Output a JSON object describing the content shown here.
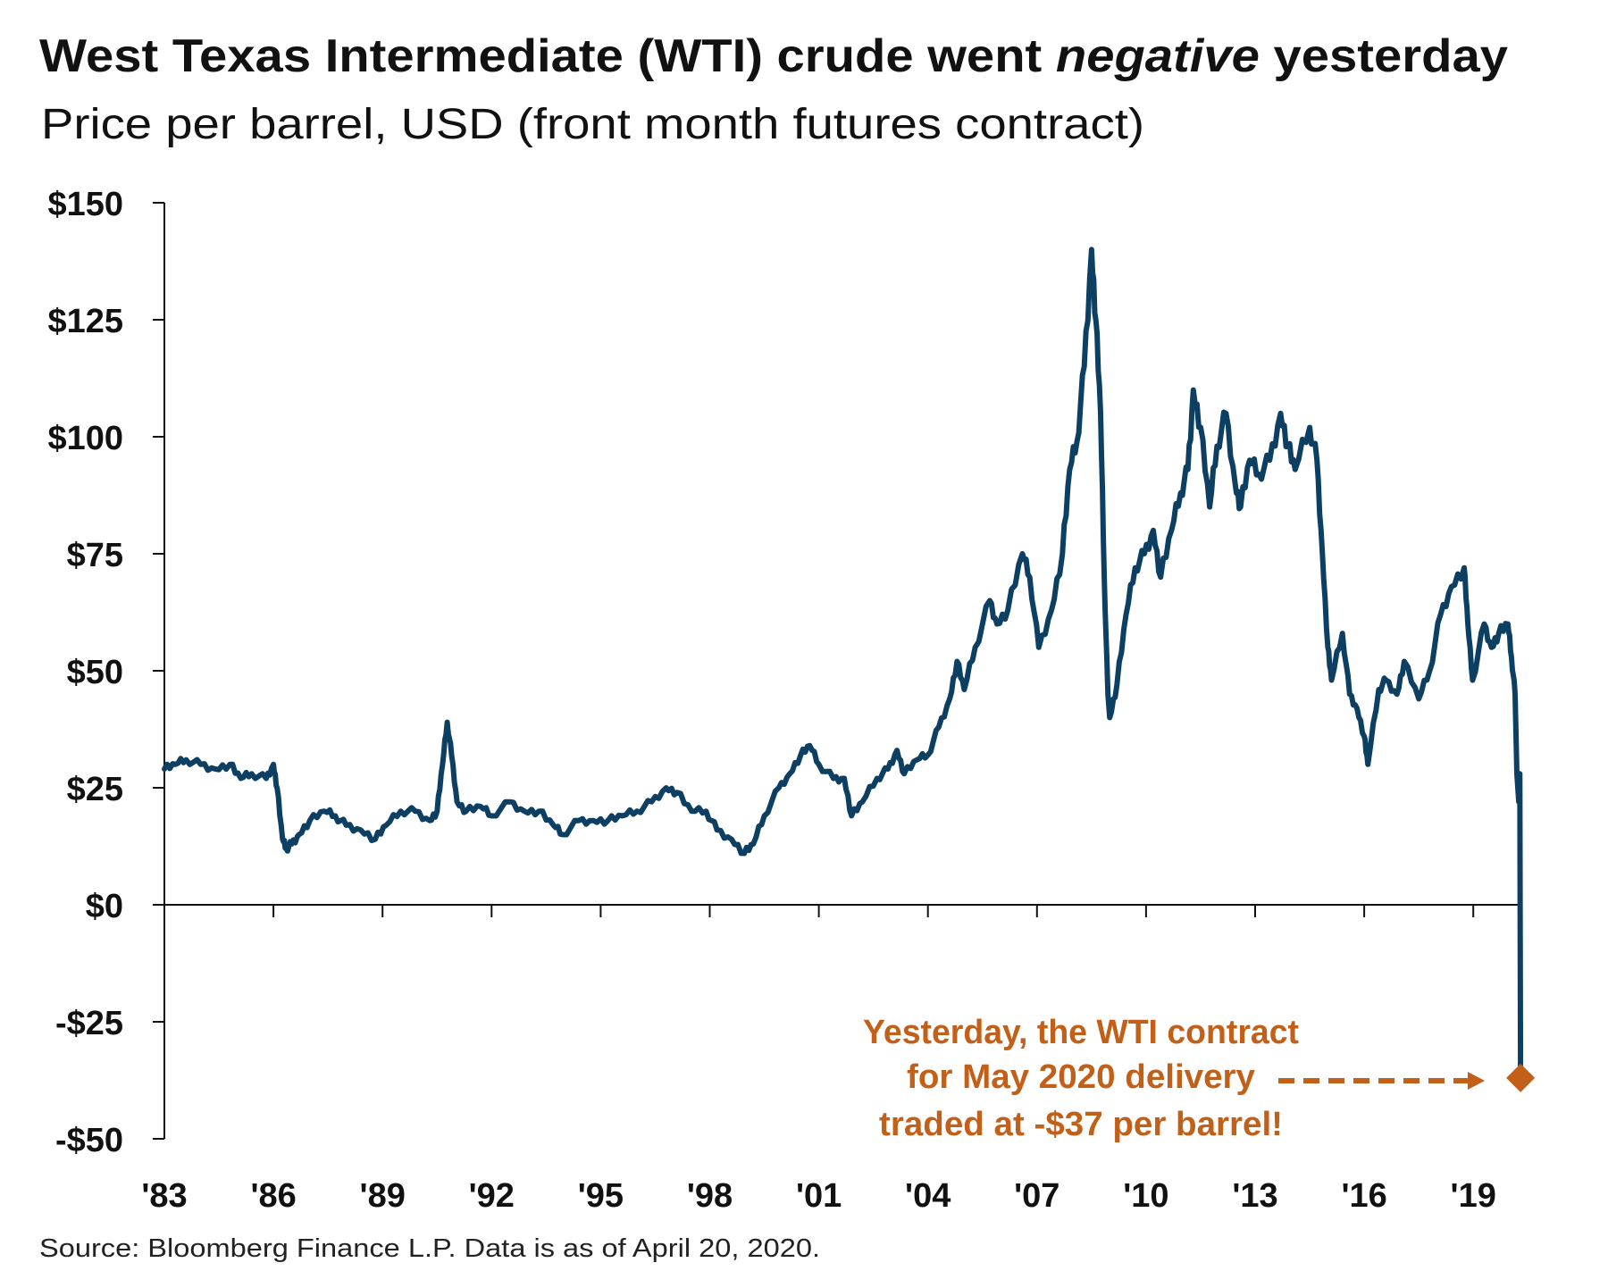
{
  "title": {
    "before": "West Texas Intermediate (WTI) crude went ",
    "emph": "negative",
    "after": " yesterday"
  },
  "subtitle": "Price per barrel, USD (front month futures contract)",
  "source": "Source: Bloomberg Finance L.P. Data is as of April 20, 2020.",
  "colors": {
    "line": "#0d3f62",
    "annotation": "#c25f18",
    "axis": "#111111"
  },
  "annotation": {
    "lines": [
      "Yesterday, the WTI contract",
      "for May 2020 delivery",
      "traded at -$37 per barrel!"
    ],
    "marker": "diamond",
    "point": {
      "x": 2020.3,
      "y": -37
    }
  },
  "chart_data": {
    "type": "line",
    "title": "West Texas Intermediate (WTI) crude went negative yesterday",
    "subtitle": "Price per barrel, USD (front month futures contract)",
    "xlabel": "",
    "ylabel": "",
    "ylim": [
      -50,
      150
    ],
    "xlim": [
      1983,
      2020.3
    ],
    "grid": false,
    "yticks": [
      150,
      125,
      100,
      75,
      50,
      25,
      0,
      -25,
      -50
    ],
    "ytick_labels": [
      "$150",
      "$125",
      "$100",
      "$75",
      "$50",
      "$25",
      "$0",
      "-$25",
      "-$50"
    ],
    "xticks": [
      1983,
      1986,
      1989,
      1992,
      1995,
      1998,
      2001,
      2004,
      2007,
      2010,
      2013,
      2016,
      2019
    ],
    "xtick_labels": [
      "'83",
      "'86",
      "'89",
      "'92",
      "'95",
      "'98",
      "'01",
      "'04",
      "'07",
      "'10",
      "'13",
      "'16",
      "'19"
    ],
    "series": [
      {
        "x": [
          1983.0,
          1983.3,
          1983.6,
          1984.0,
          1984.4,
          1984.8,
          1985.1,
          1985.4,
          1985.8,
          1986.0,
          1986.1,
          1986.25,
          1986.35,
          1986.5,
          1986.7,
          1987.0,
          1987.4,
          1987.7,
          1988.0,
          1988.4,
          1988.8,
          1989.1,
          1989.5,
          1989.9,
          1990.3,
          1990.5,
          1990.65,
          1990.78,
          1990.9,
          1991.05,
          1991.3,
          1991.7,
          1992.0,
          1992.5,
          1992.9,
          1993.3,
          1993.7,
          1993.95,
          1994.4,
          1994.8,
          1995.2,
          1995.6,
          1996.0,
          1996.4,
          1996.8,
          1997.1,
          1997.5,
          1997.9,
          1998.2,
          1998.6,
          1998.95,
          1999.2,
          1999.5,
          1999.9,
          2000.2,
          2000.5,
          2000.75,
          2001.0,
          2001.4,
          2001.7,
          2001.9,
          2002.2,
          2002.6,
          2002.9,
          2003.15,
          2003.35,
          2003.7,
          2004.0,
          2004.3,
          2004.6,
          2004.8,
          2005.0,
          2005.3,
          2005.7,
          2005.9,
          2006.2,
          2006.6,
          2006.8,
          2007.05,
          2007.4,
          2007.7,
          2007.9,
          2008.1,
          2008.3,
          2008.5,
          2008.62,
          2008.75,
          2008.85,
          2008.95,
          2009.0,
          2009.2,
          2009.45,
          2009.7,
          2009.95,
          2010.2,
          2010.4,
          2010.7,
          2010.95,
          2011.15,
          2011.3,
          2011.5,
          2011.75,
          2011.95,
          2012.2,
          2012.45,
          2012.6,
          2012.85,
          2013.1,
          2013.4,
          2013.7,
          2013.9,
          2014.1,
          2014.5,
          2014.7,
          2014.85,
          2015.0,
          2015.1,
          2015.4,
          2015.6,
          2015.8,
          2016.0,
          2016.1,
          2016.4,
          2016.6,
          2016.9,
          2017.1,
          2017.5,
          2017.8,
          2018.1,
          2018.4,
          2018.75,
          2018.85,
          2018.98,
          2019.3,
          2019.5,
          2019.7,
          2019.95,
          2020.05,
          2020.15,
          2020.2,
          2020.25,
          2020.28,
          2020.3
        ],
        "y": [
          29,
          30,
          31,
          30,
          29,
          30,
          27,
          28,
          27,
          30,
          25,
          14,
          12,
          13,
          15,
          18,
          20,
          19,
          17,
          16,
          14,
          17,
          20,
          20,
          18,
          20,
          30,
          39,
          32,
          22,
          20,
          21,
          19,
          22,
          20,
          20,
          17,
          15,
          18,
          18,
          18,
          19,
          20,
          22,
          25,
          24,
          20,
          20,
          16,
          14,
          11,
          13,
          19,
          25,
          28,
          32,
          34,
          30,
          27,
          27,
          19,
          22,
          27,
          29,
          33,
          28,
          31,
          32,
          38,
          44,
          52,
          46,
          55,
          65,
          60,
          63,
          75,
          70,
          55,
          63,
          75,
          93,
          99,
          115,
          140,
          125,
          105,
          70,
          45,
          40,
          47,
          62,
          72,
          75,
          80,
          70,
          80,
          88,
          93,
          110,
          102,
          85,
          98,
          105,
          90,
          85,
          95,
          92,
          95,
          105,
          98,
          93,
          102,
          95,
          75,
          55,
          48,
          58,
          45,
          42,
          36,
          30,
          46,
          48,
          45,
          52,
          44,
          50,
          62,
          68,
          72,
          60,
          48,
          60,
          55,
          58,
          60,
          53,
          45,
          28,
          22,
          28,
          -37
        ]
      }
    ]
  }
}
